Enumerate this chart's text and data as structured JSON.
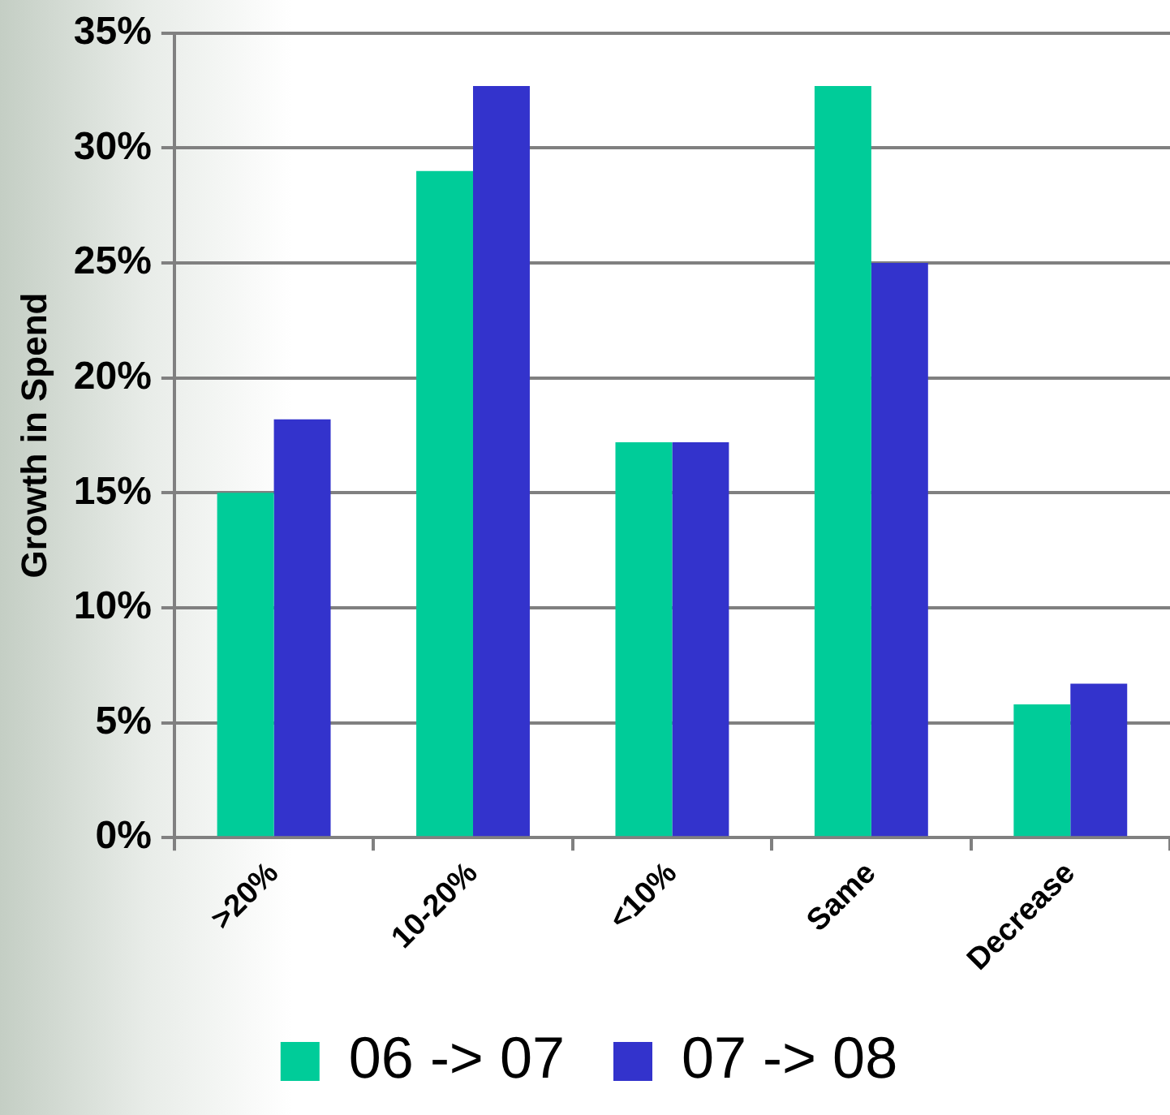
{
  "chart_data": {
    "type": "bar",
    "ylabel": "Growth in Spend",
    "categories": [
      ">20%",
      "10-20%",
      "<10%",
      "Same",
      "Decrease"
    ],
    "series": [
      {
        "name": "06 -> 07",
        "color": "#00cc99",
        "values": [
          15,
          29,
          17.2,
          32.7,
          5.8
        ]
      },
      {
        "name": "07 -> 08",
        "color": "#3333cc",
        "values": [
          18.2,
          32.7,
          17.2,
          25,
          6.7
        ]
      }
    ],
    "ylim": [
      0,
      35
    ],
    "yticks": [
      {
        "value": 0,
        "label": "0%"
      },
      {
        "value": 5,
        "label": "5%"
      },
      {
        "value": 10,
        "label": "10%"
      },
      {
        "value": 15,
        "label": "15%"
      },
      {
        "value": 20,
        "label": "20%"
      },
      {
        "value": 25,
        "label": "25%"
      },
      {
        "value": 30,
        "label": "30%"
      },
      {
        "value": 35,
        "label": "35%"
      }
    ],
    "grid": "y",
    "legend": "bottom"
  }
}
